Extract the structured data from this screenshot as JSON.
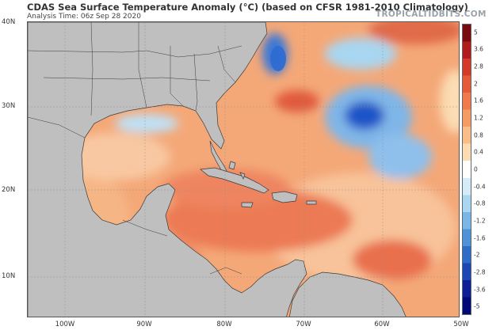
{
  "header": {
    "title": "CDAS Sea Surface Temperature Anomaly (°C) (based on CFSR 1981-2010 Climatology)",
    "analysis_time": "Analysis Time: 06z Sep 28 2020",
    "brand": "TROPICALTIDBITS.COM"
  },
  "axes": {
    "lat_labels": [
      "40N",
      "30N",
      "20N",
      "10N"
    ],
    "lon_labels": [
      "100W",
      "90W",
      "80W",
      "70W",
      "60W",
      "50W"
    ]
  },
  "colorbar": {
    "ticks": [
      "5",
      "3.6",
      "2.8",
      "2",
      "1.6",
      "1.2",
      "0.8",
      "0.4",
      "0",
      "-0.4",
      "-0.8",
      "-1.2",
      "-1.6",
      "-2",
      "-2.8",
      "-3.6",
      "-5"
    ],
    "colors": [
      "#7a0a12",
      "#b01b1e",
      "#d23a2c",
      "#e35b3b",
      "#ee7a4e",
      "#f49b66",
      "#f8bd89",
      "#fbdcb3",
      "#ffffff",
      "#d4ecf7",
      "#a9d6f0",
      "#7ab7e6",
      "#4f92d8",
      "#2f6cc8",
      "#1d45b3",
      "#0d1f96",
      "#020a78"
    ]
  },
  "colors": {
    "land": "#bfbfbf",
    "border": "#3a3a3a",
    "warm_base": "#f4a878",
    "warm_strong": "#ec7a55",
    "cool": "#7fb6e8",
    "cool_strong": "#1d55c8"
  }
}
